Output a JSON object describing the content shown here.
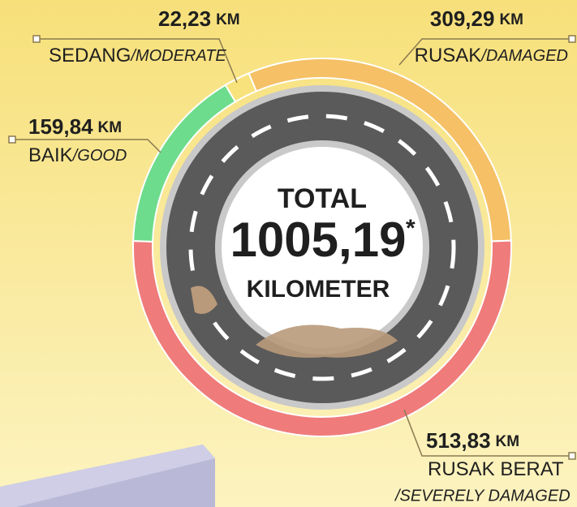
{
  "chart_data": {
    "type": "pie",
    "categories": [
      "SEDANG",
      "RUSAK",
      "RUSAK BERAT",
      "BAIK"
    ],
    "categories_en": [
      "/MODERATE",
      "/DAMAGED",
      "/SEVERELY DAMAGED",
      "/GOOD"
    ],
    "values": [
      22.23,
      309.29,
      513.83,
      159.84
    ],
    "value_labels": [
      "22,23",
      "309,29",
      "513,83",
      "159,84"
    ],
    "unit": "KM",
    "colors": [
      "#f8e27c",
      "#f5c066",
      "#ef7b7b",
      "#6ddc8c"
    ],
    "total": {
      "label": "TOTAL",
      "value": 1005.19,
      "value_label": "1005,19",
      "note": "*",
      "unit": "KILOMETER"
    }
  }
}
